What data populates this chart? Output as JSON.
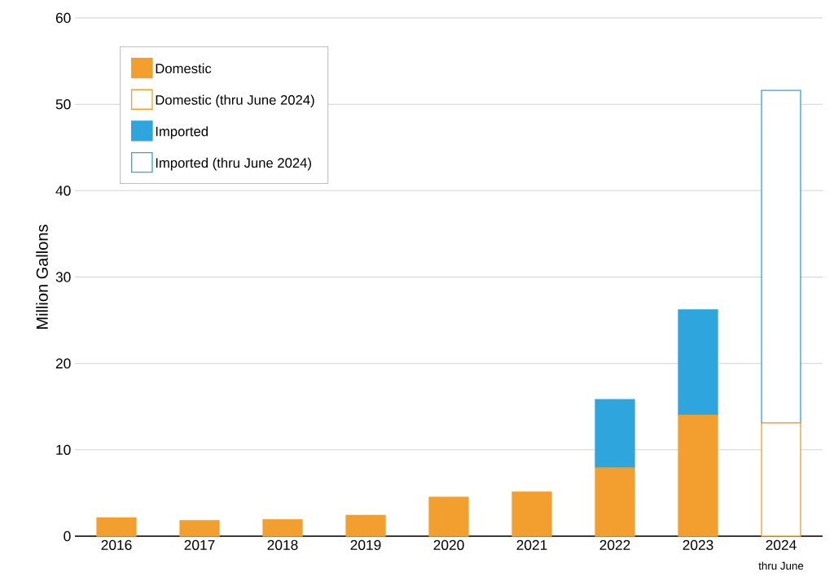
{
  "chart_data": {
    "type": "bar",
    "stacked": true,
    "ylabel": "Million Gallons",
    "categories": [
      "2016",
      "2017",
      "2018",
      "2019",
      "2020",
      "2021",
      "2022",
      "2023",
      "2024"
    ],
    "series": [
      {
        "name": "Domestic",
        "color": "#f29f2f",
        "values": [
          2.1,
          1.8,
          1.9,
          2.4,
          4.5,
          5.1,
          7.9,
          14.0,
          null
        ]
      },
      {
        "name": "Domestic (thru June 2024)",
        "color": "#f29f2f",
        "values": [
          null,
          null,
          null,
          null,
          null,
          null,
          null,
          null,
          13.1
        ]
      },
      {
        "name": "Imported",
        "color": "#2ea6dd",
        "values": [
          null,
          null,
          null,
          null,
          null,
          null,
          7.9,
          12.2,
          null
        ]
      },
      {
        "name": "Imported (thru June 2024)",
        "color": "#2ea6dd",
        "values": [
          null,
          null,
          null,
          null,
          null,
          null,
          null,
          null,
          38.5
        ]
      }
    ],
    "ylim": [
      0,
      60
    ],
    "yticks": [
      0,
      10,
      20,
      30,
      40,
      50,
      60
    ],
    "grid": "y",
    "legend": "top left",
    "annotations": [
      "thru June"
    ]
  }
}
